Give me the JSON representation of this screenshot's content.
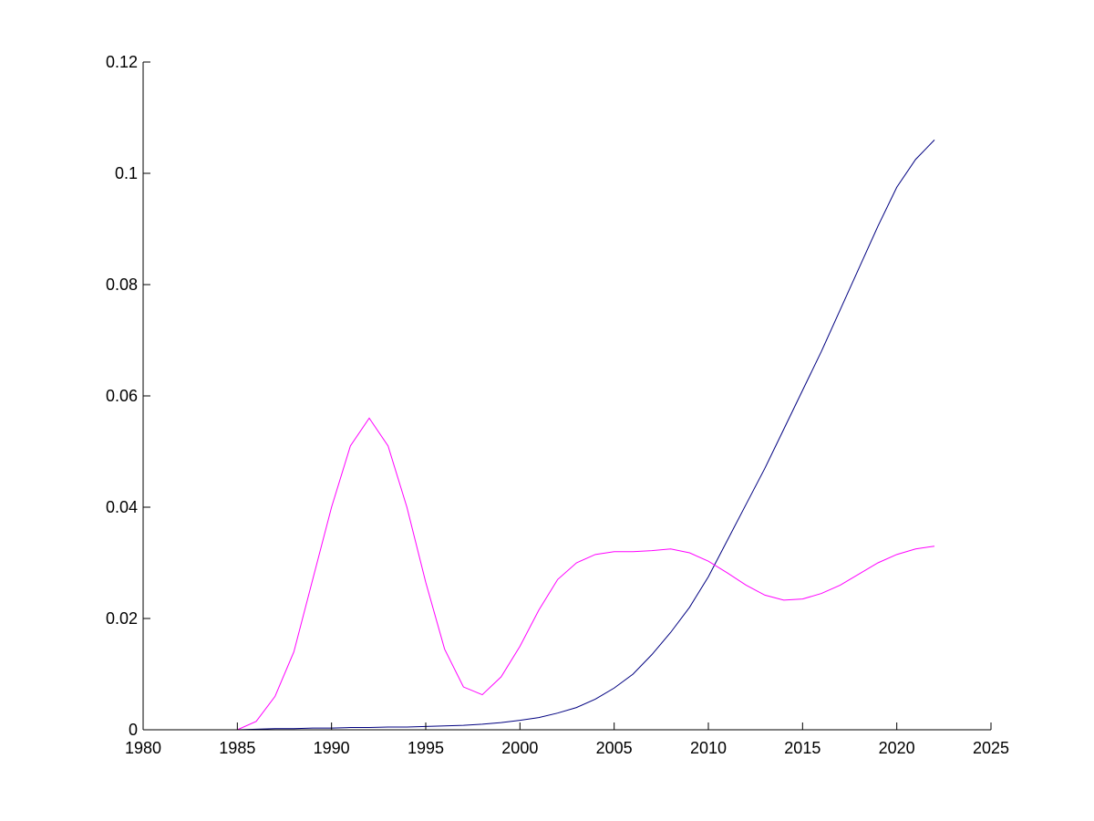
{
  "chart_data": {
    "type": "line",
    "title": "",
    "xlabel": "",
    "ylabel": "",
    "xlim": [
      1980,
      2025
    ],
    "ylim": [
      0,
      0.12
    ],
    "xticks": [
      1980,
      1985,
      1990,
      1995,
      2000,
      2005,
      2010,
      2015,
      2020,
      2025
    ],
    "yticks": [
      0,
      0.02,
      0.04,
      0.06,
      0.08,
      0.1,
      0.12
    ],
    "xtick_labels": [
      "1980",
      "1985",
      "1990",
      "1995",
      "2000",
      "2005",
      "2010",
      "2015",
      "2020",
      "2025"
    ],
    "ytick_labels": [
      "0",
      "0.02",
      "0.04",
      "0.06",
      "0.08",
      "0.1",
      "0.12"
    ],
    "grid": false,
    "legend": "none",
    "x": [
      1980,
      1981,
      1982,
      1983,
      1984,
      1985,
      1986,
      1987,
      1988,
      1989,
      1990,
      1991,
      1992,
      1993,
      1994,
      1995,
      1996,
      1997,
      1998,
      1999,
      2000,
      2001,
      2002,
      2003,
      2004,
      2005,
      2006,
      2007,
      2008,
      2009,
      2010,
      2011,
      2012,
      2013,
      2014,
      2015,
      2016,
      2017,
      2018,
      2019,
      2020,
      2021,
      2022
    ],
    "series": [
      {
        "color": "#000080",
        "values": [
          0,
          0,
          0,
          0,
          0,
          0,
          0.0001,
          0.0002,
          0.0002,
          0.0003,
          0.0003,
          0.0004,
          0.0004,
          0.0005,
          0.0005,
          0.0006,
          0.0007,
          0.0008,
          0.001,
          0.0013,
          0.0017,
          0.0022,
          0.003,
          0.004,
          0.0055,
          0.0075,
          0.01,
          0.0135,
          0.0175,
          0.022,
          0.0275,
          0.034,
          0.0405,
          0.047,
          0.054,
          0.061,
          0.068,
          0.0755,
          0.083,
          0.0905,
          0.0975,
          0.1025,
          0.106
        ]
      },
      {
        "color": "#ff00ff",
        "values": [
          0,
          0,
          0,
          0,
          0,
          0,
          0.0015,
          0.006,
          0.014,
          0.027,
          0.04,
          0.051,
          0.056,
          0.051,
          0.04,
          0.0265,
          0.0145,
          0.0077,
          0.0063,
          0.0095,
          0.015,
          0.0215,
          0.027,
          0.03,
          0.0315,
          0.032,
          0.032,
          0.0322,
          0.0325,
          0.0318,
          0.0303,
          0.0282,
          0.026,
          0.0242,
          0.0233,
          0.0235,
          0.0245,
          0.026,
          0.028,
          0.03,
          0.0315,
          0.0325,
          0.033
        ]
      }
    ]
  }
}
